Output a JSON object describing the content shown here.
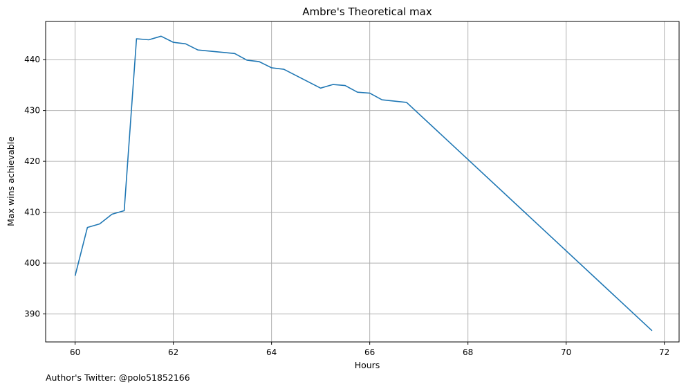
{
  "chart_data": {
    "type": "line",
    "title": "Ambre's Theoretical max",
    "xlabel": "Hours",
    "ylabel": "Max wins achievable",
    "xlim": [
      59.4,
      72.3
    ],
    "ylim": [
      384.5,
      447.5
    ],
    "xticks": [
      60,
      62,
      64,
      66,
      68,
      70,
      72
    ],
    "yticks": [
      390,
      400,
      410,
      420,
      430,
      440
    ],
    "grid": true,
    "line_color": "#1f77b4",
    "series": [
      {
        "x": [
          60.0,
          60.25,
          60.5,
          60.75,
          61.0,
          61.25,
          61.5,
          61.75,
          62.0,
          62.25,
          62.5,
          63.25,
          63.5,
          63.75,
          64.0,
          64.25,
          65.0,
          65.25,
          65.5,
          65.75,
          66.0,
          66.25,
          66.75,
          71.75
        ],
        "y": [
          397.5,
          407.0,
          407.7,
          409.6,
          410.3,
          444.1,
          443.9,
          444.6,
          443.4,
          443.1,
          441.9,
          441.2,
          439.9,
          439.6,
          438.4,
          438.1,
          434.4,
          435.1,
          434.9,
          433.6,
          433.4,
          432.1,
          431.6,
          386.7
        ]
      }
    ]
  },
  "footer": {
    "note": "Author's Twitter: @polo51852166"
  }
}
